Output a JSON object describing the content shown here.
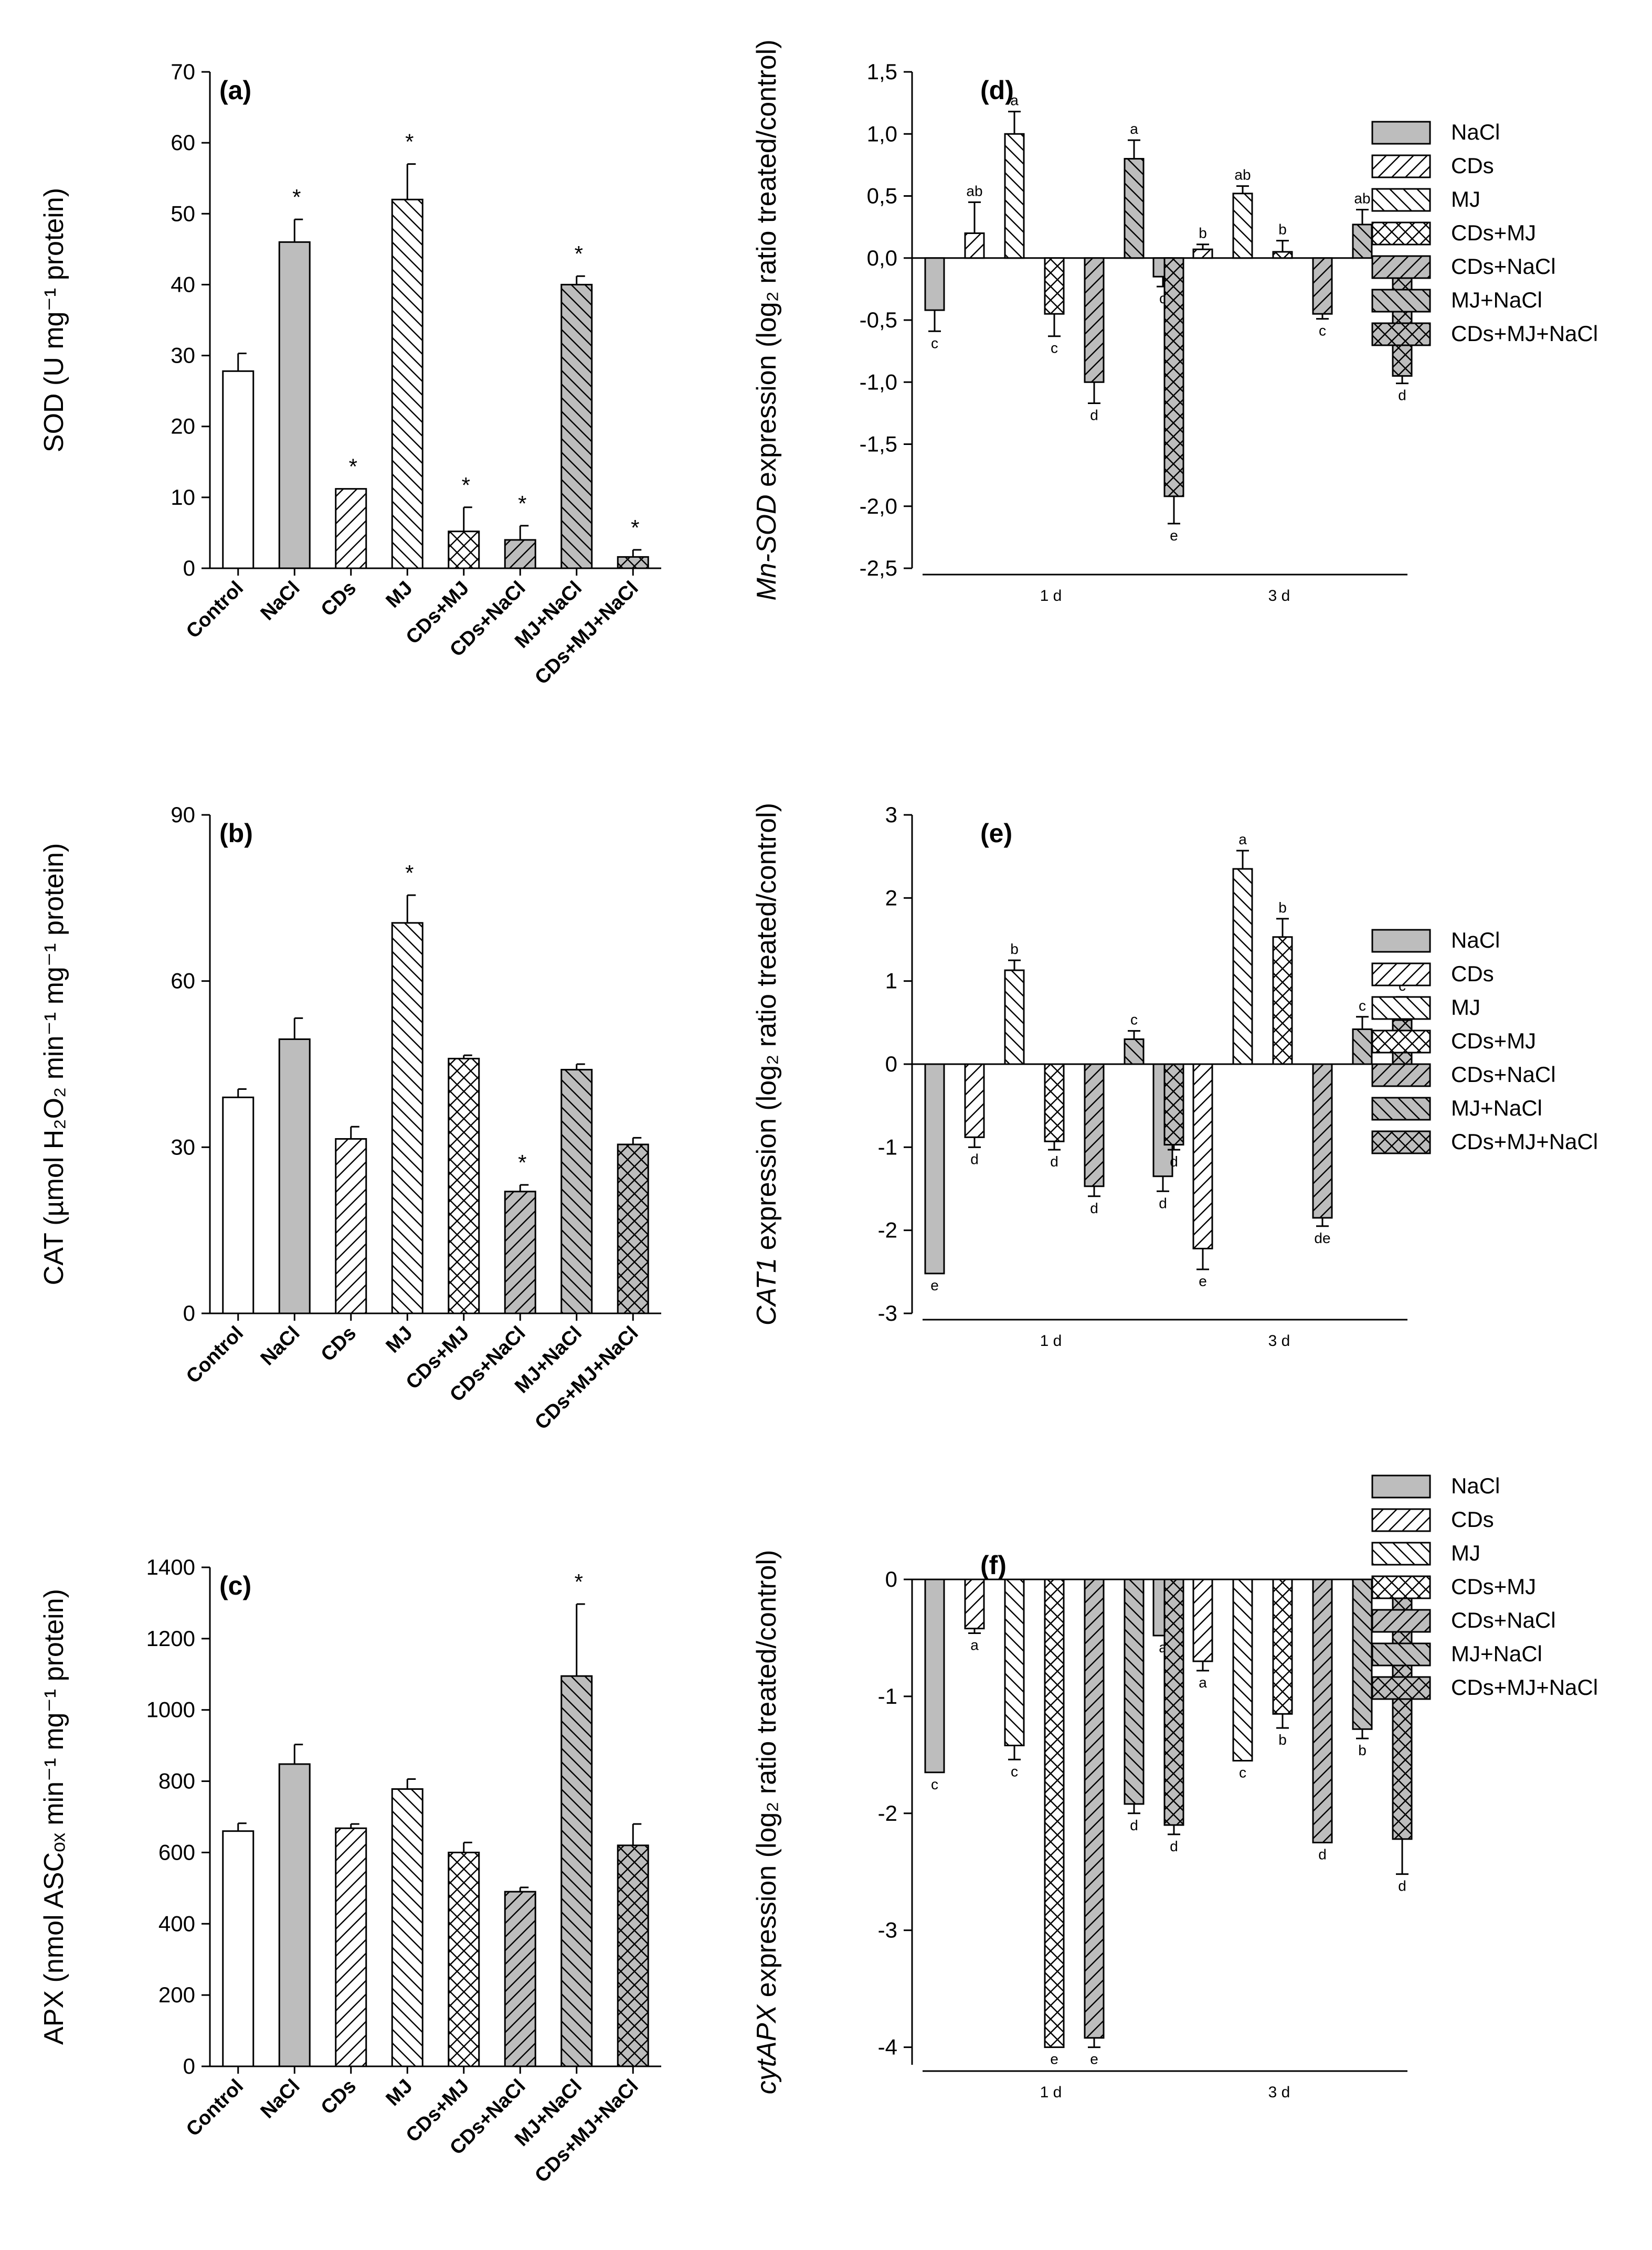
{
  "legend_labels": [
    "NaCl",
    "CDs",
    "MJ",
    "CDs+MJ",
    "CDs+NaCl",
    "MJ+NaCl",
    "CDs+MJ+NaCl"
  ],
  "chart_data": [
    {
      "id": "a",
      "type": "bar",
      "panel_label": "(a)",
      "ylabel": "SOD (U mg⁻¹ protein)",
      "ylim": [
        0,
        70
      ],
      "yticks": [
        0,
        10,
        20,
        30,
        40,
        50,
        60,
        70
      ],
      "categories": [
        "Control",
        "NaCl",
        "CDs",
        "MJ",
        "CDs+MJ",
        "CDs+NaCl",
        "MJ+NaCl",
        "CDs+MJ+NaCl"
      ],
      "values": [
        27.8,
        46,
        11.2,
        52,
        5.2,
        4,
        40,
        1.6
      ],
      "errors": [
        2.5,
        3.2,
        0,
        5,
        3.4,
        2,
        1.2,
        1
      ],
      "significance": [
        "",
        "*",
        "*",
        "*",
        "*",
        "*",
        "*",
        "*"
      ]
    },
    {
      "id": "b",
      "type": "bar",
      "panel_label": "(b)",
      "ylabel": "CAT (µmol H₂O₂ min⁻¹ mg⁻¹ protein)",
      "ylim": [
        0,
        90
      ],
      "yticks": [
        0,
        30,
        60,
        90
      ],
      "categories": [
        "Control",
        "NaCl",
        "CDs",
        "MJ",
        "CDs+MJ",
        "CDs+NaCl",
        "MJ+NaCl",
        "CDs+MJ+NaCl"
      ],
      "values": [
        39,
        49.5,
        31.5,
        70.5,
        46,
        22,
        44,
        30.5
      ],
      "errors": [
        1.5,
        3.8,
        2.2,
        5,
        0.6,
        1.2,
        1,
        1.2
      ],
      "significance": [
        "",
        "",
        "",
        "*",
        "",
        "*",
        "",
        ""
      ]
    },
    {
      "id": "c",
      "type": "bar",
      "panel_label": "(c)",
      "ylabel": "APX (nmol ASCₒₓ min⁻¹ mg⁻¹ protein)",
      "ylim": [
        0,
        1400
      ],
      "yticks": [
        0,
        200,
        400,
        600,
        800,
        1000,
        1200,
        1400
      ],
      "categories": [
        "Control",
        "NaCl",
        "CDs",
        "MJ",
        "CDs+MJ",
        "CDs+NaCl",
        "MJ+NaCl",
        "CDs+MJ+NaCl"
      ],
      "values": [
        660,
        848,
        668,
        778,
        600,
        490,
        1095,
        620
      ],
      "errors": [
        22,
        55,
        12,
        28,
        28,
        12,
        202,
        60
      ],
      "significance": [
        "",
        "",
        "",
        "",
        "",
        "",
        "*",
        ""
      ]
    },
    {
      "id": "d",
      "type": "bar",
      "panel_label": "(d)",
      "ylabel_gene": "Mn-SOD",
      "ylabel_rest": " expression (log₂ ratio treated/control)",
      "ylim": [
        -2.5,
        1.5
      ],
      "ytick_labels": [
        "1,5",
        "1,0",
        "0,5",
        "0,0",
        "-0,5",
        "-1,0",
        "-1,5",
        "-2,0",
        "-2,5"
      ],
      "ytick_values": [
        1.5,
        1.0,
        0.5,
        0.0,
        -0.5,
        -1.0,
        -1.5,
        -2.0,
        -2.5
      ],
      "groups": [
        "1 d",
        "3 d"
      ],
      "series": [
        {
          "name": "NaCl",
          "values": [
            -0.42,
            -0.15
          ],
          "errors": [
            0.17,
            0.08
          ],
          "letters": [
            "c",
            "c"
          ]
        },
        {
          "name": "CDs",
          "values": [
            0.2,
            0.07
          ],
          "errors": [
            0.25,
            0.04
          ],
          "letters": [
            "ab",
            "b"
          ]
        },
        {
          "name": "MJ",
          "values": [
            1.0,
            0.52
          ],
          "errors": [
            0.18,
            0.06
          ],
          "letters": [
            "a",
            "ab"
          ]
        },
        {
          "name": "CDs+MJ",
          "values": [
            -0.45,
            0.05
          ],
          "errors": [
            0.18,
            0.09
          ],
          "letters": [
            "c",
            "b"
          ]
        },
        {
          "name": "CDs+NaCl",
          "values": [
            -1.0,
            -0.45
          ],
          "errors": [
            0.17,
            0.04
          ],
          "letters": [
            "d",
            "c"
          ]
        },
        {
          "name": "MJ+NaCl",
          "values": [
            0.8,
            0.27
          ],
          "errors": [
            0.15,
            0.12
          ],
          "letters": [
            "a",
            "ab"
          ]
        },
        {
          "name": "CDs+MJ+NaCl",
          "values": [
            -1.92,
            -0.95
          ],
          "errors": [
            0.22,
            0.06
          ],
          "letters": [
            "e",
            "d"
          ]
        }
      ]
    },
    {
      "id": "e",
      "type": "bar",
      "panel_label": "(e)",
      "ylabel_gene": "CAT1",
      "ylabel_rest": " expression (log₂ ratio treated/control)",
      "ylim": [
        -3,
        3
      ],
      "ytick_labels": [
        "3",
        "2",
        "1",
        "0",
        "-1",
        "-2",
        "-3"
      ],
      "ytick_values": [
        3,
        2,
        1,
        0,
        -1,
        -2,
        -3
      ],
      "groups": [
        "1 d",
        "3 d"
      ],
      "series": [
        {
          "name": "NaCl",
          "values": [
            -2.52,
            -1.35
          ],
          "errors": [
            0,
            0.18
          ],
          "letters": [
            "e",
            "d"
          ]
        },
        {
          "name": "CDs",
          "values": [
            -0.88,
            -2.22
          ],
          "errors": [
            0.12,
            0.25
          ],
          "letters": [
            "d",
            "e"
          ]
        },
        {
          "name": "MJ",
          "values": [
            1.13,
            2.35
          ],
          "errors": [
            0.12,
            0.22
          ],
          "letters": [
            "b",
            "a"
          ]
        },
        {
          "name": "CDs+MJ",
          "values": [
            -0.93,
            1.53
          ],
          "errors": [
            0.1,
            0.22
          ],
          "letters": [
            "d",
            "b"
          ]
        },
        {
          "name": "CDs+NaCl",
          "values": [
            -1.47,
            -1.85
          ],
          "errors": [
            0.12,
            0.1
          ],
          "letters": [
            "d",
            "de"
          ]
        },
        {
          "name": "MJ+NaCl",
          "values": [
            0.3,
            0.42
          ],
          "errors": [
            0.1,
            0.15
          ],
          "letters": [
            "c",
            "c"
          ]
        },
        {
          "name": "CDs+MJ+NaCl",
          "values": [
            -0.97,
            0.53
          ],
          "errors": [
            0.06,
            0.28
          ],
          "letters": [
            "d",
            "c"
          ]
        }
      ]
    },
    {
      "id": "f",
      "type": "bar",
      "panel_label": "(f)",
      "ylabel_gene": "cytAPX",
      "ylabel_rest": " expression (log₂ ratio treated/control)",
      "ylim": [
        -4.15,
        0
      ],
      "ytick_labels": [
        "0",
        "-1",
        "-2",
        "-3",
        "-4"
      ],
      "ytick_values": [
        0,
        -1,
        -2,
        -3,
        -4
      ],
      "groups": [
        "1 d",
        "3 d"
      ],
      "series": [
        {
          "name": "NaCl",
          "values": [
            -1.65,
            -0.48
          ],
          "errors": [
            0,
            0
          ],
          "letters": [
            "c",
            "a"
          ]
        },
        {
          "name": "CDs",
          "values": [
            -0.42,
            -0.7
          ],
          "errors": [
            0.04,
            0.08
          ],
          "letters": [
            "a",
            "a"
          ]
        },
        {
          "name": "MJ",
          "values": [
            -1.42,
            -1.55
          ],
          "errors": [
            0.12,
            0
          ],
          "letters": [
            "c",
            "c"
          ]
        },
        {
          "name": "CDs+MJ",
          "values": [
            -4.0,
            -1.15
          ],
          "errors": [
            0,
            0.12
          ],
          "letters": [
            "e",
            "b"
          ]
        },
        {
          "name": "CDs+NaCl",
          "values": [
            -3.92,
            -2.25
          ],
          "errors": [
            0.08,
            0
          ],
          "letters": [
            "e",
            "d"
          ]
        },
        {
          "name": "MJ+NaCl",
          "values": [
            -1.92,
            -1.28
          ],
          "errors": [
            0.08,
            0.08
          ],
          "letters": [
            "d",
            "b"
          ]
        },
        {
          "name": "CDs+MJ+NaCl",
          "values": [
            -2.1,
            -2.22
          ],
          "errors": [
            0.08,
            0.3
          ],
          "letters": [
            "d",
            "d"
          ]
        }
      ]
    }
  ]
}
